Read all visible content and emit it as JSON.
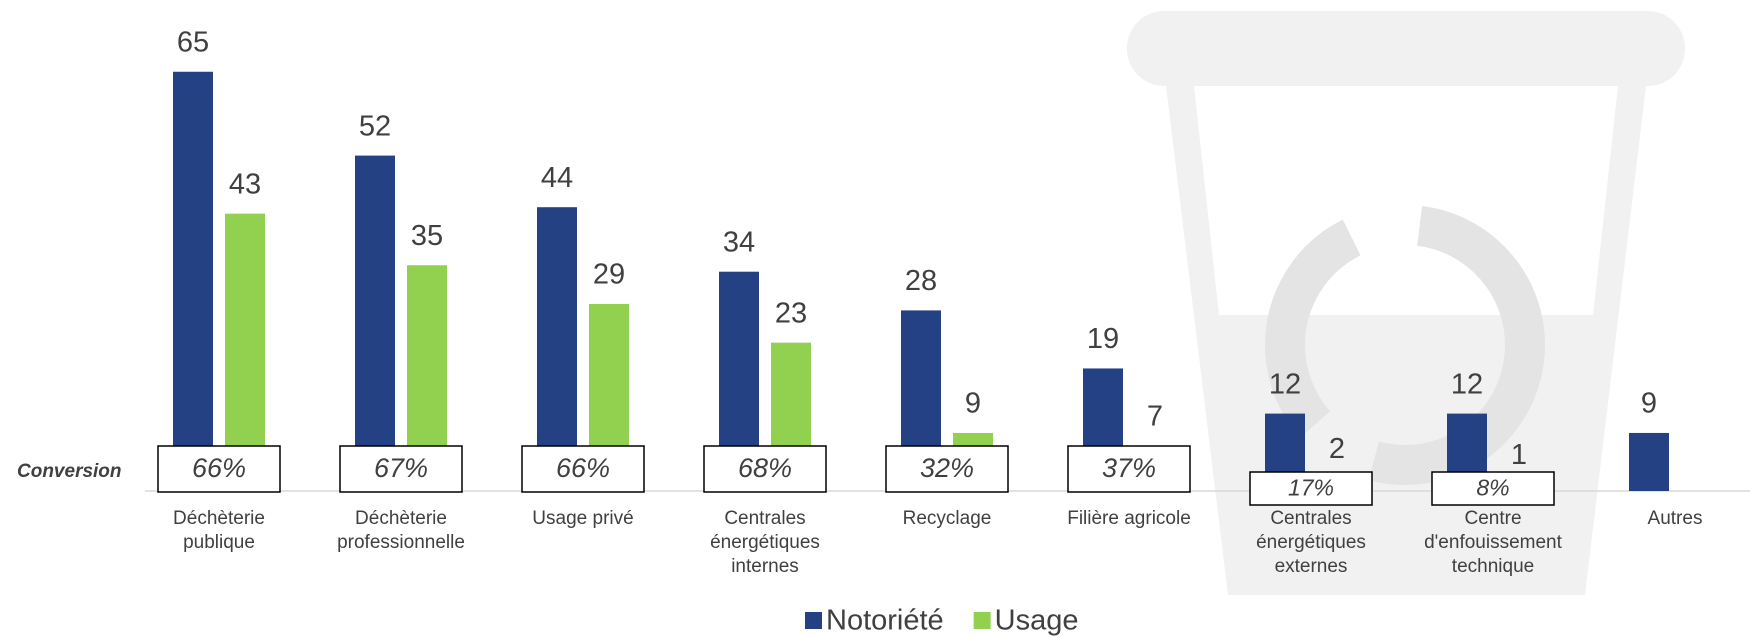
{
  "chart_data": {
    "type": "bar",
    "categories": [
      "Déchèterie\npublique",
      "Déchèterie\nprofessionnelle",
      "Usage privé",
      "Centrales\nénergétiques\ninternes",
      "Recyclage",
      "Filière agricole",
      "Centrales\nénergétiques\nexternes",
      "Centre\nd'enfouissement\ntechnique",
      "Autres"
    ],
    "series": [
      {
        "name": "Notoriété",
        "color": "#244183",
        "values": [
          65,
          52,
          44,
          34,
          28,
          19,
          12,
          12,
          9
        ]
      },
      {
        "name": "Usage",
        "color": "#92d050",
        "values": [
          43,
          35,
          29,
          23,
          9,
          7,
          2,
          1,
          null
        ]
      }
    ],
    "conversion": {
      "name": "Conversion",
      "values": [
        66,
        67,
        66,
        68,
        32,
        37,
        17,
        8,
        null
      ],
      "value_labels": [
        "66%",
        "67%",
        "66%",
        "68%",
        "32%",
        "37%",
        "17%",
        "8%",
        null
      ]
    },
    "legend": "bottom"
  }
}
